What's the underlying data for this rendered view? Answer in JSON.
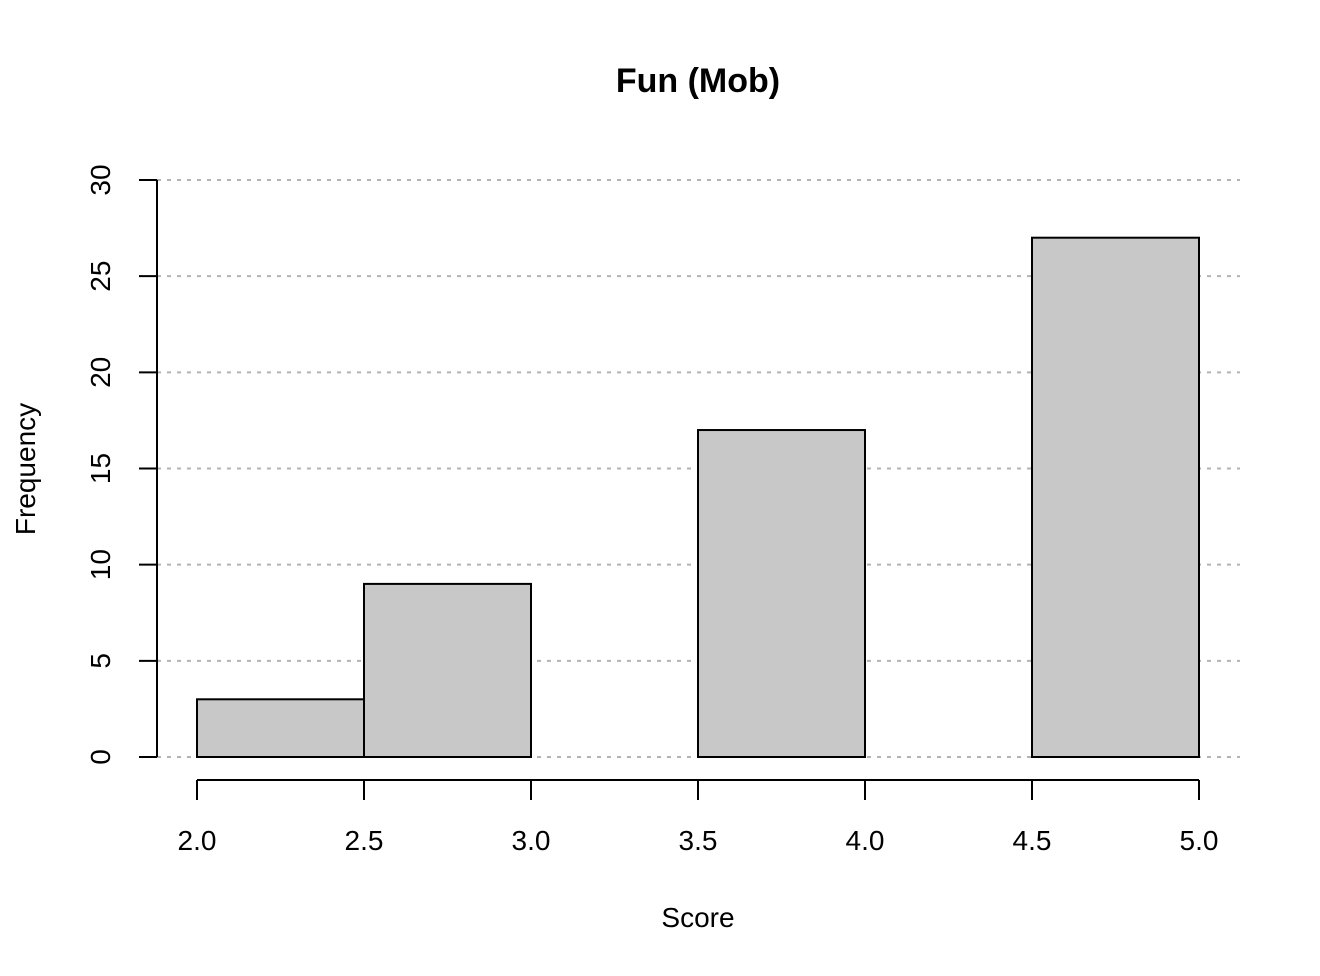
{
  "chart_data": {
    "type": "bar",
    "subtype": "histogram",
    "title": "Fun (Mob)",
    "xlabel": "Score",
    "ylabel": "Frequency",
    "bins": [
      {
        "from": 2.0,
        "to": 2.5,
        "count": 3
      },
      {
        "from": 2.5,
        "to": 3.0,
        "count": 9
      },
      {
        "from": 3.0,
        "to": 3.5,
        "count": 0
      },
      {
        "from": 3.5,
        "to": 4.0,
        "count": 17
      },
      {
        "from": 4.0,
        "to": 4.5,
        "count": 0
      },
      {
        "from": 4.5,
        "to": 5.0,
        "count": 27
      }
    ],
    "xlim": [
      2.0,
      5.0
    ],
    "ylim": [
      0,
      30
    ],
    "x_ticks": [
      "2.0",
      "2.5",
      "3.0",
      "3.5",
      "4.0",
      "4.5",
      "5.0"
    ],
    "y_ticks": [
      "0",
      "5",
      "10",
      "15",
      "20",
      "25",
      "30"
    ],
    "grid": "horizontal dotted",
    "bar_color": "#c8c8c8",
    "edge_color": "#000000",
    "grid_color": "#b3b3b3"
  }
}
